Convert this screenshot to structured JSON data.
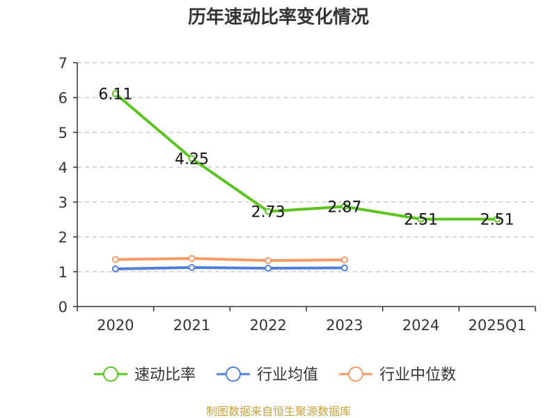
{
  "chart_data": {
    "type": "line",
    "title": "历年速动比率变化情况",
    "categories": [
      "2020",
      "2021",
      "2022",
      "2023",
      "2024",
      "2025Q1"
    ],
    "ylim": [
      0,
      7
    ],
    "yticks": [
      0,
      1,
      2,
      3,
      4,
      5,
      6,
      7
    ],
    "grid": true,
    "legend_position": "bottom",
    "series": [
      {
        "name": "速动比率",
        "color": "#5cc421",
        "values": [
          6.11,
          4.25,
          2.73,
          2.87,
          2.51,
          2.51
        ],
        "labels": [
          "6.11",
          "4.25",
          "2.73",
          "2.87",
          "2.51",
          "2.51"
        ]
      },
      {
        "name": "行业均值",
        "color": "#4f7fdc",
        "values": [
          1.08,
          1.12,
          1.1,
          1.11,
          null,
          null
        ]
      },
      {
        "name": "行业中位数",
        "color": "#f59a67",
        "values": [
          1.35,
          1.38,
          1.32,
          1.34,
          null,
          null
        ]
      }
    ],
    "source": "制图数据来自恒生聚源数据库"
  }
}
